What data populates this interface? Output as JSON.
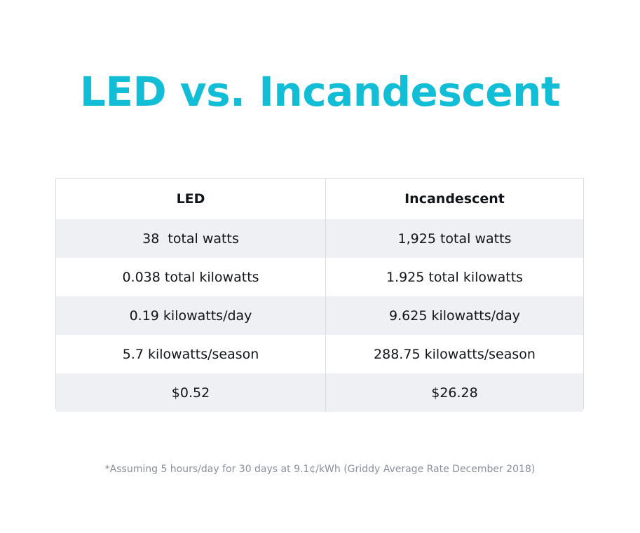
{
  "title": "LED vs. Incandescent",
  "table": {
    "headers": [
      "LED",
      "Incandescent"
    ],
    "rows": [
      [
        "38  total watts",
        "1,925 total watts"
      ],
      [
        "0.038 total kilowatts",
        "1.925 total kilowatts"
      ],
      [
        "0.19 kilowatts/day",
        "9.625 kilowatts/day"
      ],
      [
        "5.7 kilowatts/season",
        "288.75 kilowatts/season"
      ],
      [
        "$0.52",
        "$26.28"
      ]
    ]
  },
  "footnote": "*Assuming 5 hours/day for 30 days at 9.1¢/kWh (Griddy Average Rate December 2018)",
  "colors": {
    "title": "#12bdd6",
    "row_shade": "#eef0f4",
    "border": "#d9dce1",
    "footnote": "#8a8f99"
  }
}
